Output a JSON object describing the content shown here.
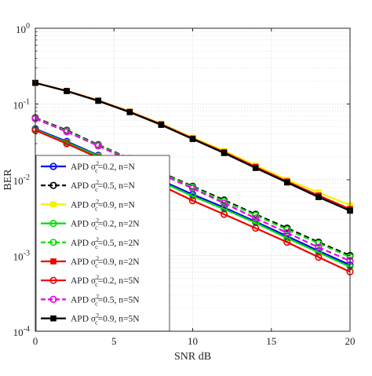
{
  "chart_data": {
    "type": "line",
    "title": "",
    "xlabel": "SNR dB",
    "ylabel": "BER",
    "xlim": [
      0,
      20
    ],
    "ylim": [
      0.0001,
      1
    ],
    "yscale": "log",
    "grid": true,
    "legend_position": "left-middle",
    "xticks": [
      0,
      5,
      10,
      15,
      20
    ],
    "xtick_labels": [
      "0",
      "5",
      "10",
      "15",
      "20"
    ],
    "yticks": [
      0.0001,
      0.001,
      0.01,
      0.1,
      1
    ],
    "ytick_labels": [
      {
        "base": "10",
        "exp": "-4"
      },
      {
        "base": "10",
        "exp": "-3"
      },
      {
        "base": "10",
        "exp": "-2"
      },
      {
        "base": "10",
        "exp": "-1"
      },
      {
        "base": "10",
        "exp": "0"
      }
    ],
    "x": [
      0,
      2,
      4,
      6,
      8,
      10,
      12,
      14,
      16,
      18,
      20
    ],
    "series": [
      {
        "label_prefix": "APD σ",
        "label_sup": "2",
        "label_sub": "c",
        "label_suffix": "=0.2, n=N",
        "color": "#0000ff",
        "dash": "solid",
        "marker": "circle",
        "marker_fill": "none",
        "values": [
          0.047,
          0.032,
          0.021,
          0.0145,
          0.0098,
          0.0064,
          0.0043,
          0.0028,
          0.0018,
          0.00115,
          0.00075
        ]
      },
      {
        "label_prefix": "APD σ",
        "label_sup": "2",
        "label_sub": "c",
        "label_suffix": "=0.5, n=N",
        "color": "#000000",
        "dash": "dashed",
        "marker": "circle",
        "marker_fill": "none",
        "values": [
          0.066,
          0.045,
          0.029,
          0.019,
          0.0125,
          0.0082,
          0.0054,
          0.0035,
          0.0023,
          0.0015,
          0.001
        ]
      },
      {
        "label_prefix": "APD σ",
        "label_sup": "2",
        "label_sub": "c",
        "label_suffix": "=0.9, n=N",
        "color": "#f2f200",
        "dash": "solid",
        "marker": "square",
        "marker_fill": "#f2f200",
        "values": [
          0.19,
          0.15,
          0.112,
          0.08,
          0.055,
          0.036,
          0.024,
          0.0155,
          0.01,
          0.0068,
          0.0046
        ]
      },
      {
        "label_prefix": "APD σ",
        "label_sup": "2",
        "label_sub": "c",
        "label_suffix": "=0.2, n=2N",
        "color": "#00dd00",
        "dash": "solid",
        "marker": "circle",
        "marker_fill": "none",
        "values": [
          0.046,
          0.031,
          0.0205,
          0.014,
          0.0094,
          0.0061,
          0.0041,
          0.0027,
          0.0017,
          0.0011,
          0.00071
        ]
      },
      {
        "label_prefix": "APD σ",
        "label_sup": "2",
        "label_sub": "c",
        "label_suffix": "=0.5, n=2N",
        "color": "#00dd00",
        "dash": "dashed",
        "marker": "circle",
        "marker_fill": "none",
        "values": [
          0.065,
          0.044,
          0.0285,
          0.0187,
          0.0122,
          0.008,
          0.0052,
          0.0034,
          0.0022,
          0.00145,
          0.00096
        ]
      },
      {
        "label_prefix": "APD σ",
        "label_sup": "2",
        "label_sub": "c",
        "label_suffix": "=0.9, n=2N",
        "color": "#ee0000",
        "dash": "solid",
        "marker": "square",
        "marker_fill": "#ee0000",
        "values": [
          0.19,
          0.149,
          0.111,
          0.079,
          0.054,
          0.035,
          0.0232,
          0.0148,
          0.0095,
          0.0062,
          0.0041
        ]
      },
      {
        "label_prefix": "APD σ",
        "label_sup": "2",
        "label_sub": "c",
        "label_suffix": "=0.2, n=5N",
        "color": "#ee0000",
        "dash": "solid",
        "marker": "circle",
        "marker_fill": "none",
        "values": [
          0.045,
          0.03,
          0.0195,
          0.0128,
          0.0084,
          0.0053,
          0.0035,
          0.0023,
          0.0015,
          0.00095,
          0.00061
        ]
      },
      {
        "label_prefix": "APD σ",
        "label_sup": "2",
        "label_sub": "c",
        "label_suffix": "=0.5, n=5N",
        "color": "#ee00ee",
        "dash": "dashed",
        "marker": "circle",
        "marker_fill": "none",
        "values": [
          0.064,
          0.043,
          0.028,
          0.018,
          0.0118,
          0.0077,
          0.0049,
          0.0031,
          0.002,
          0.00128,
          0.00085
        ]
      },
      {
        "label_prefix": "APD σ",
        "label_sup": "2",
        "label_sub": "c",
        "label_suffix": "=0.9, n=5N",
        "color": "#000000",
        "dash": "solid",
        "marker": "square",
        "marker_fill": "#000000",
        "values": [
          0.19,
          0.148,
          0.11,
          0.078,
          0.053,
          0.0345,
          0.0225,
          0.0143,
          0.0092,
          0.0059,
          0.0039
        ]
      }
    ]
  }
}
